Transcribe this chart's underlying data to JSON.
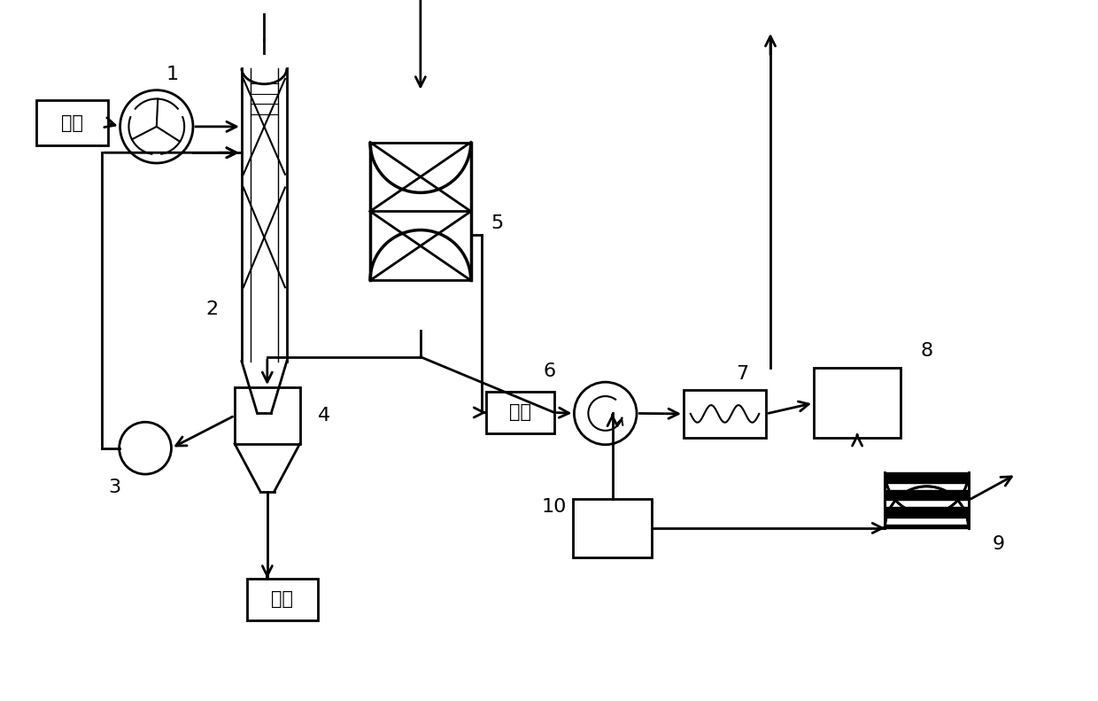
{
  "bg_color": "#ffffff",
  "line_color": "#000000",
  "lw": 2.0,
  "fig_width": 12.4,
  "fig_height": 7.91,
  "dpi": 100,
  "labels": {
    "waste_gas": "废气",
    "sulfur": "硫磺",
    "air": "空气"
  }
}
